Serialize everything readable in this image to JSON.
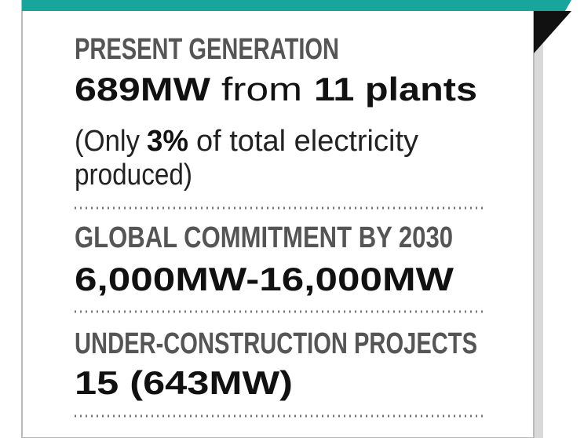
{
  "sections": [
    {
      "heading": "PRESENT GENERATION",
      "value": [
        "689MW",
        "from",
        "11 plants"
      ],
      "note": [
        "(Only",
        "3%",
        "of total electricity",
        "produced)"
      ]
    },
    {
      "heading": "GLOBAL COMMITMENT BY 2030",
      "value": [
        "6,000MW-16,000MW"
      ]
    },
    {
      "heading": "UNDER-CONSTRUCTION PROJECTS",
      "value": [
        "15 (643MW)"
      ]
    }
  ]
}
